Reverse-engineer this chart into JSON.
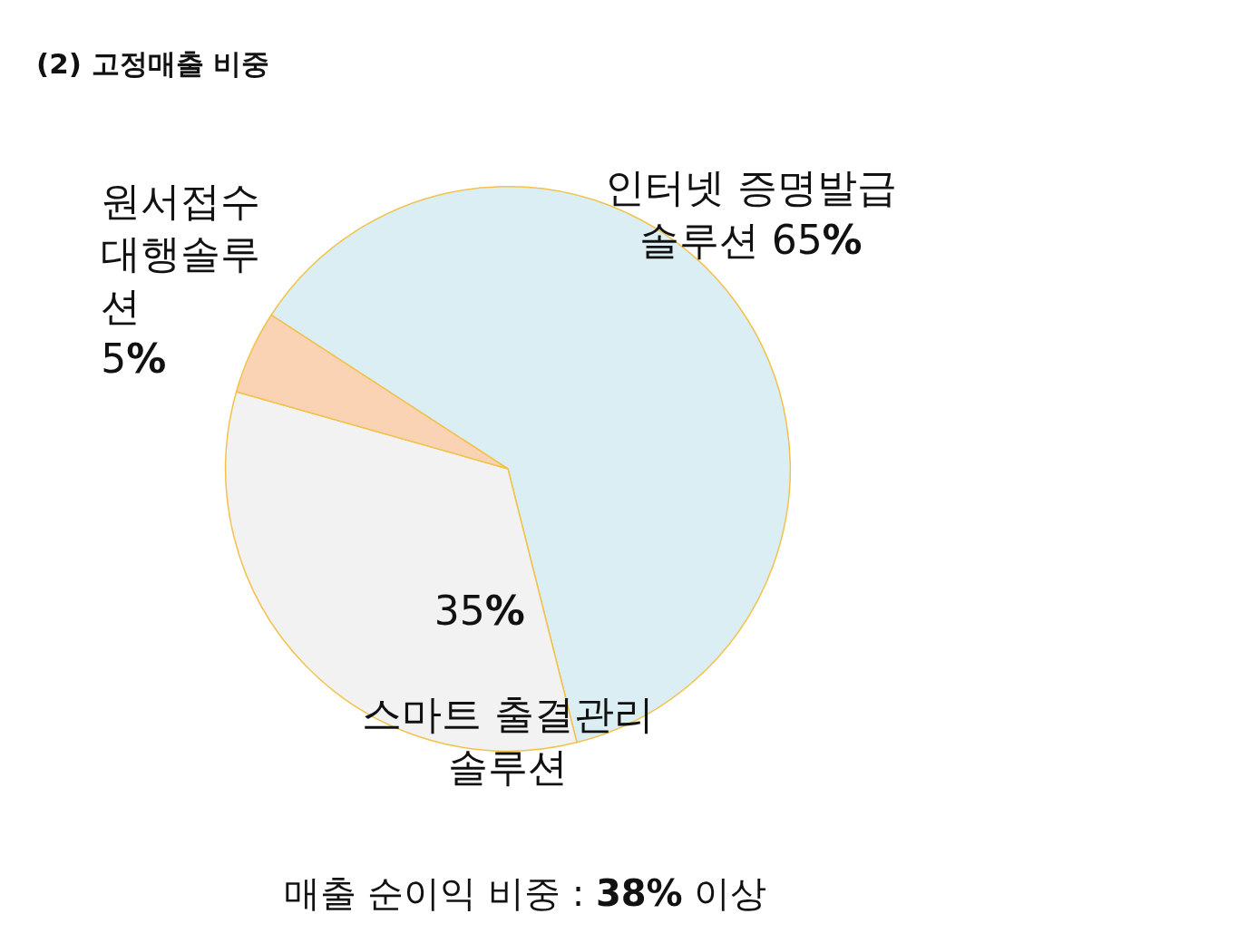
{
  "chart_data": {
    "type": "pie",
    "title": "(2) 고정매출 비중",
    "categories": [
      "인터넷 증명발급 솔루션",
      "스마트 출결관리 솔루션",
      "원서접수 대행솔루션"
    ],
    "values": [
      65,
      35,
      5
    ],
    "colors": [
      "#daeef3",
      "#f2f2f2",
      "#f9d3b4"
    ],
    "value_labels": [
      "65%",
      "35%",
      "5%"
    ],
    "annotations": [
      "매출 순이익 비중 : 38% 이상"
    ]
  }
}
